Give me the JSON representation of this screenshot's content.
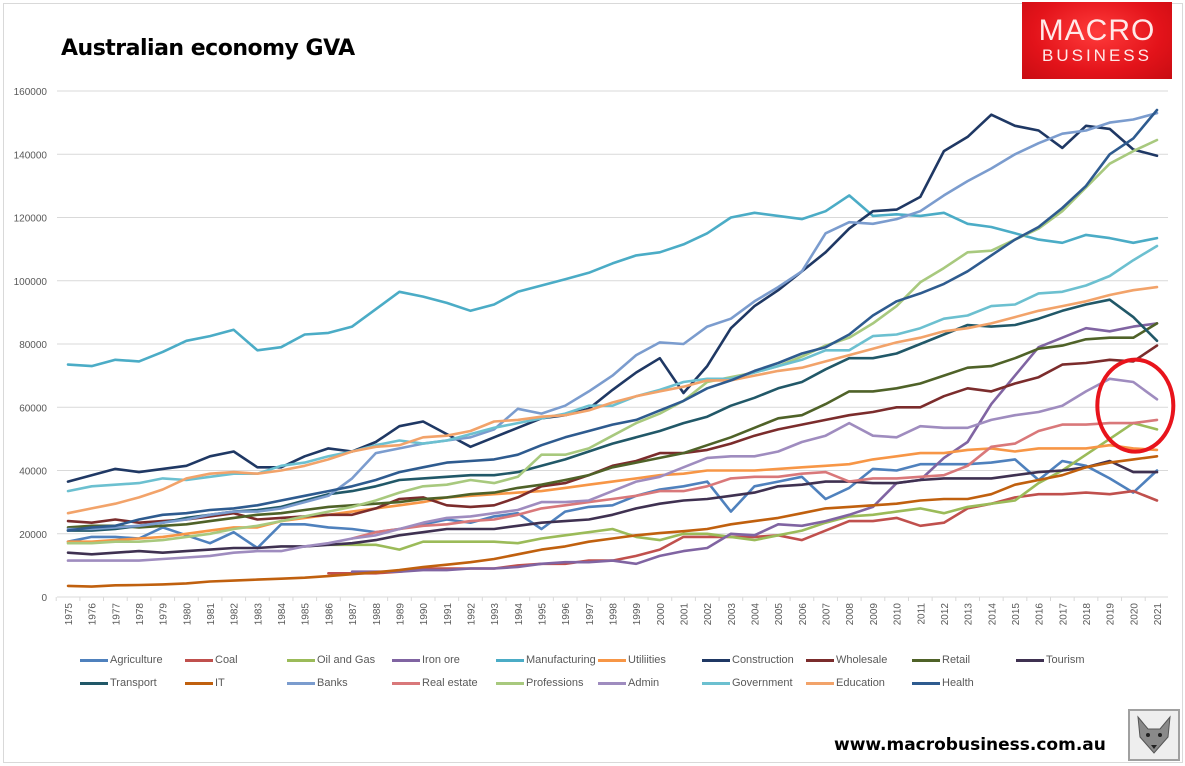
{
  "logo": {
    "line1": "MACRO",
    "line2": "BUSINESS"
  },
  "footer": {
    "url": "www.macrobusiness.com.au"
  },
  "chart_data": {
    "type": "line",
    "title": "Australian economy GVA",
    "xlabel": "",
    "ylabel": "",
    "ylim": [
      0,
      160000
    ],
    "yticks": [
      0,
      20000,
      40000,
      60000,
      80000,
      100000,
      120000,
      140000,
      160000
    ],
    "ytick_labels": [
      "0",
      "20000",
      "40000",
      "60000",
      "80000",
      "100000",
      "120000",
      "140000",
      "160000"
    ],
    "grid": true,
    "legend_position": "bottom",
    "annotation": "red circle highlighting 2019-2021 values around 45000-65000",
    "x": [
      "1975",
      "1976",
      "1977",
      "1978",
      "1979",
      "1980",
      "1981",
      "1982",
      "1983",
      "1984",
      "1985",
      "1986",
      "1987",
      "1988",
      "1989",
      "1990",
      "1991",
      "1992",
      "1993",
      "1994",
      "1995",
      "1996",
      "1997",
      "1998",
      "1999",
      "2000",
      "2001",
      "2002",
      "2003",
      "2004",
      "2005",
      "2006",
      "2007",
      "2008",
      "2009",
      "2010",
      "2011",
      "2012",
      "2013",
      "2014",
      "2015",
      "2016",
      "2017",
      "2018",
      "2019",
      "2020",
      "2021"
    ],
    "series": [
      {
        "name": "Agriculture",
        "color": "#4f81bd",
        "values": [
          17500,
          19000,
          19000,
          18500,
          22000,
          19500,
          17000,
          20500,
          15500,
          23000,
          23000,
          22000,
          21500,
          20500,
          21500,
          23000,
          24500,
          23500,
          25500,
          26500,
          21500,
          27000,
          28500,
          29000,
          32000,
          34000,
          35000,
          36500,
          27000,
          35000,
          36500,
          38000,
          31000,
          34500,
          40500,
          40000,
          42000,
          42000,
          42000,
          42500,
          43500,
          37000,
          43000,
          41500,
          37500,
          33000,
          40000
        ]
      },
      {
        "name": "Coal",
        "color": "#c0504d",
        "values": [
          null,
          null,
          null,
          null,
          null,
          null,
          null,
          null,
          null,
          null,
          null,
          7500,
          7500,
          7500,
          8000,
          9000,
          9000,
          9000,
          9000,
          10000,
          10500,
          10500,
          11500,
          11500,
          13000,
          15000,
          19000,
          19000,
          19000,
          19000,
          19500,
          18000,
          21000,
          24000,
          24000,
          25000,
          22500,
          23500,
          28000,
          29500,
          31500,
          32500,
          32500,
          33000,
          32500,
          33500,
          30500
        ]
      },
      {
        "name": "Oil and Gas",
        "color": "#9bbb59",
        "values": [
          null,
          null,
          null,
          null,
          null,
          null,
          null,
          null,
          null,
          null,
          null,
          16500,
          16500,
          16500,
          15000,
          17500,
          17500,
          17500,
          17500,
          17000,
          18500,
          19500,
          20500,
          21500,
          19000,
          18000,
          20000,
          20000,
          19000,
          18000,
          19500,
          21000,
          23500,
          25500,
          26000,
          27000,
          28000,
          26500,
          28500,
          29500,
          30500,
          36000,
          40000,
          45000,
          50000,
          55000,
          53000
        ]
      },
      {
        "name": "Iron ore",
        "color": "#8064a2",
        "values": [
          null,
          null,
          null,
          null,
          null,
          null,
          null,
          null,
          null,
          null,
          null,
          null,
          8000,
          8000,
          8000,
          8500,
          8500,
          9000,
          9000,
          9500,
          10500,
          11000,
          11000,
          11500,
          10500,
          13000,
          14500,
          15500,
          20000,
          19500,
          23000,
          22500,
          24000,
          26000,
          28500,
          36000,
          37000,
          44000,
          49000,
          61000,
          70000,
          79000,
          82000,
          85000,
          84000,
          85500,
          86500
        ]
      },
      {
        "name": "Manufacturing",
        "color": "#4bacc6",
        "values": [
          73500,
          73000,
          75000,
          74500,
          77500,
          81000,
          82500,
          84500,
          78000,
          79000,
          83000,
          83500,
          85500,
          91000,
          96500,
          95000,
          93000,
          90500,
          92500,
          96500,
          98500,
          100500,
          102500,
          105500,
          108000,
          109000,
          111500,
          115000,
          120000,
          121500,
          120500,
          119500,
          122000,
          127000,
          120500,
          121000,
          120500,
          121500,
          118000,
          117000,
          115000,
          113000,
          112000,
          114500,
          113500,
          112000,
          113500
        ]
      },
      {
        "name": "Utiliities",
        "color": "#f79646",
        "values": [
          17500,
          17500,
          18000,
          18500,
          19000,
          20000,
          21000,
          22000,
          22000,
          24000,
          25000,
          26000,
          27000,
          28000,
          29000,
          30000,
          31500,
          32000,
          32500,
          33000,
          33500,
          34500,
          35500,
          36500,
          37500,
          38500,
          39000,
          40000,
          40000,
          40000,
          40500,
          41000,
          41500,
          42000,
          43500,
          44500,
          45500,
          45500,
          46500,
          47000,
          46000,
          47000,
          47000,
          47000,
          48000,
          47000,
          46500
        ]
      },
      {
        "name": "Construction",
        "color": "#1f3864",
        "values": [
          36500,
          38500,
          40500,
          39500,
          40500,
          41500,
          44500,
          46000,
          41000,
          41000,
          44500,
          47000,
          46000,
          49000,
          54000,
          55500,
          51500,
          47500,
          50500,
          53500,
          56500,
          57500,
          59500,
          65500,
          71000,
          75500,
          64500,
          73000,
          85000,
          92000,
          97000,
          103000,
          109000,
          116500,
          122000,
          122500,
          126500,
          141000,
          145500,
          152500,
          149000,
          147500,
          142000,
          149000,
          148000,
          141500,
          139500
        ]
      },
      {
        "name": "Wholesale",
        "color": "#7b2c2c",
        "values": [
          24000,
          23500,
          24500,
          23500,
          24000,
          24500,
          25500,
          26500,
          24500,
          25000,
          25500,
          26000,
          26000,
          28000,
          31000,
          31500,
          29000,
          28500,
          29000,
          31500,
          35000,
          36000,
          38500,
          41500,
          43000,
          45500,
          45500,
          46500,
          48500,
          51000,
          53000,
          54500,
          56000,
          57500,
          58500,
          60000,
          60000,
          63500,
          66000,
          65000,
          67500,
          69500,
          73500,
          74000,
          75000,
          74500,
          79500
        ]
      },
      {
        "name": "Retail",
        "color": "#4f6228",
        "values": [
          22000,
          22500,
          22500,
          22000,
          22500,
          23000,
          24000,
          25000,
          26000,
          26500,
          27500,
          28500,
          29000,
          29500,
          30000,
          31000,
          31500,
          32500,
          33000,
          34500,
          35500,
          37000,
          38500,
          41000,
          42500,
          44000,
          45500,
          48000,
          50500,
          53500,
          56500,
          57500,
          61000,
          65000,
          65000,
          66000,
          67500,
          70000,
          72500,
          73000,
          75500,
          78500,
          79500,
          81500,
          82000,
          82000,
          86500
        ]
      },
      {
        "name": "Tourism",
        "color": "#3f3151",
        "values": [
          14000,
          13500,
          14000,
          14500,
          14000,
          14500,
          15000,
          15500,
          15500,
          16000,
          16000,
          16500,
          17000,
          18000,
          19500,
          20500,
          21500,
          21500,
          21500,
          22500,
          23500,
          24000,
          24500,
          26000,
          28000,
          29500,
          30500,
          31000,
          32000,
          33000,
          35000,
          35500,
          36500,
          36500,
          36000,
          36000,
          37000,
          37500,
          37500,
          37500,
          38500,
          39500,
          40000,
          41000,
          43000,
          39500,
          39500
        ]
      },
      {
        "name": "Transport",
        "color": "#215868",
        "values": [
          21000,
          21000,
          21500,
          22500,
          23500,
          25000,
          26000,
          27000,
          27500,
          28500,
          30500,
          32500,
          33500,
          35000,
          37000,
          37500,
          38000,
          38500,
          38500,
          39500,
          41500,
          43500,
          46000,
          48500,
          50500,
          52500,
          55000,
          57000,
          60500,
          63000,
          66000,
          68000,
          72000,
          75500,
          75500,
          77000,
          80000,
          83000,
          86000,
          85500,
          86000,
          88000,
          90500,
          92500,
          94000,
          88500,
          81000
        ]
      },
      {
        "name": "IT",
        "color": "#c0600e",
        "values": [
          3500,
          3300,
          3700,
          3800,
          4000,
          4300,
          4900,
          5200,
          5500,
          5800,
          6100,
          6600,
          7200,
          7800,
          8500,
          9500,
          10200,
          11000,
          12000,
          13500,
          15000,
          16000,
          17500,
          18500,
          19500,
          20200,
          20800,
          21500,
          23000,
          24000,
          25000,
          26500,
          28000,
          28500,
          29000,
          29500,
          30500,
          31000,
          31000,
          32500,
          35500,
          37000,
          38500,
          41000,
          42500,
          43500,
          44500
        ]
      },
      {
        "name": "Banks",
        "color": "#7b9cce",
        "values": [
          21500,
          21500,
          22000,
          22500,
          23500,
          24500,
          26000,
          27000,
          27000,
          28000,
          30000,
          32000,
          37500,
          45500,
          47000,
          48500,
          49500,
          50500,
          53000,
          59500,
          58000,
          60500,
          65000,
          70000,
          76500,
          80500,
          80000,
          85500,
          88000,
          93500,
          98000,
          103000,
          115000,
          118500,
          118000,
          119500,
          122000,
          127000,
          131500,
          135500,
          140000,
          143500,
          146500,
          147500,
          150000,
          151000,
          153000
        ]
      },
      {
        "name": "Real estate",
        "color": "#d9787a",
        "values": [
          null,
          null,
          null,
          null,
          null,
          null,
          null,
          null,
          null,
          null,
          null,
          null,
          18500,
          20500,
          21500,
          22500,
          23000,
          24000,
          24500,
          26000,
          28000,
          29000,
          30000,
          31000,
          32000,
          33500,
          33500,
          35000,
          37500,
          38000,
          38000,
          39000,
          39500,
          36500,
          37500,
          37500,
          38000,
          38500,
          41500,
          47500,
          48500,
          52500,
          54500,
          54500,
          55000,
          55000,
          56000
        ]
      },
      {
        "name": "Professions",
        "color": "#a8c97e",
        "values": [
          17000,
          17000,
          17500,
          17500,
          18000,
          19000,
          20000,
          21500,
          22500,
          24000,
          25500,
          27000,
          28500,
          30500,
          33000,
          35000,
          35500,
          37000,
          36000,
          38000,
          45000,
          45000,
          47000,
          51000,
          55000,
          58000,
          62000,
          68000,
          69500,
          71000,
          73000,
          76000,
          79500,
          82000,
          86500,
          92000,
          99500,
          104000,
          109000,
          109500,
          113000,
          116500,
          122000,
          129500,
          137000,
          141000,
          144500
        ]
      },
      {
        "name": "Admin",
        "color": "#9f8cbf",
        "values": [
          11500,
          11500,
          11500,
          11500,
          12000,
          12500,
          13000,
          14000,
          14500,
          14500,
          16000,
          17000,
          18500,
          19500,
          21500,
          23500,
          25000,
          25500,
          26500,
          27500,
          30000,
          30000,
          30500,
          33500,
          36500,
          38000,
          41000,
          44000,
          44500,
          44500,
          46000,
          49000,
          51000,
          55000,
          51000,
          50500,
          54000,
          53500,
          53500,
          56000,
          57500,
          58500,
          60500,
          65000,
          69000,
          68000,
          62500
        ]
      },
      {
        "name": "Government",
        "color": "#6cc0d0",
        "values": [
          33500,
          35000,
          35500,
          36000,
          37500,
          37000,
          38000,
          39000,
          39000,
          41500,
          42500,
          44500,
          46000,
          48000,
          49500,
          48500,
          49500,
          51500,
          53500,
          55000,
          56500,
          58000,
          60500,
          60500,
          63500,
          65500,
          68000,
          69000,
          69000,
          71000,
          73000,
          75000,
          78000,
          78000,
          82500,
          83000,
          85000,
          88000,
          89000,
          92000,
          92500,
          96000,
          96500,
          98500,
          101500,
          106500,
          111000
        ]
      },
      {
        "name": "Education",
        "color": "#f2a36a",
        "values": [
          26500,
          28000,
          29500,
          31500,
          34000,
          37500,
          39000,
          39500,
          39000,
          40000,
          41500,
          43500,
          46000,
          47500,
          48000,
          50500,
          51000,
          52500,
          55500,
          56000,
          57000,
          57500,
          59000,
          61500,
          63500,
          65000,
          66500,
          68500,
          68500,
          70000,
          71500,
          72500,
          74500,
          76500,
          78500,
          80500,
          82000,
          84000,
          85000,
          86500,
          88500,
          90500,
          92000,
          93500,
          95500,
          97000,
          98000
        ]
      },
      {
        "name": "Health",
        "color": "#2e5b8f",
        "values": [
          21000,
          22000,
          22500,
          24500,
          26000,
          26500,
          27500,
          28000,
          29000,
          30500,
          32000,
          33500,
          35000,
          37000,
          39500,
          41000,
          42500,
          43000,
          43500,
          45000,
          48000,
          50500,
          52500,
          54500,
          56000,
          59000,
          62000,
          66000,
          68500,
          71500,
          74000,
          77000,
          79000,
          83000,
          89000,
          93500,
          96000,
          99000,
          103000,
          108000,
          113000,
          117000,
          123000,
          130000,
          140000,
          145000,
          154000
        ]
      }
    ]
  }
}
